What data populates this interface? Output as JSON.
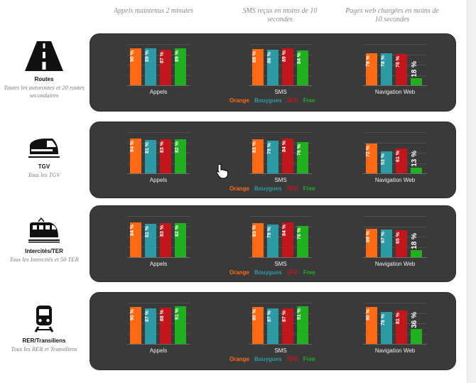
{
  "headers": {
    "calls": "Appels maintenus 2 minutes",
    "sms": "SMS reçus en moins de 10 secondes",
    "web": "Pages web chargées en moins de 10 secondes"
  },
  "operators": [
    {
      "name": "Orange",
      "color": "#ff6a13"
    },
    {
      "name": "Bouygues",
      "color": "#2e9aa6"
    },
    {
      "name": "SFR",
      "color": "#c2161c"
    },
    {
      "name": "Free",
      "color": "#20b022"
    }
  ],
  "groups": {
    "calls": "Appels",
    "sms": "SMS",
    "web": "Navigation Web"
  },
  "rows": [
    {
      "name": "Routes",
      "sub": "Toutes les autoroutes et 20 routes secondaires",
      "icon": "road-icon"
    },
    {
      "name": "TGV",
      "sub": "Tous les TGV",
      "icon": "tgv-train-icon"
    },
    {
      "name": "Intercités/TER",
      "sub": "Tous les Intercités et 50 TER",
      "icon": "regional-train-icon"
    },
    {
      "name": "RER/Transiliens",
      "sub": "Tous les RER et Transiliens",
      "icon": "rer-train-icon"
    }
  ],
  "chart_data": {
    "type": "bar",
    "unit": "%",
    "series": [
      "Orange",
      "Bouygues",
      "SFR",
      "Free"
    ],
    "rows": [
      {
        "name": "Routes",
        "calls": [
          90,
          89,
          87,
          89
        ],
        "sms": [
          88,
          86,
          89,
          84
        ],
        "web": [
          78,
          78,
          76,
          18
        ]
      },
      {
        "name": "TGV",
        "calls": [
          84,
          81,
          83,
          82
        ],
        "sms": [
          83,
          79,
          84,
          76
        ],
        "web": [
          72,
          53,
          61,
          13
        ]
      },
      {
        "name": "Intercités/TER",
        "calls": [
          84,
          81,
          83,
          82
        ],
        "sms": [
          83,
          79,
          84,
          76
        ],
        "web": [
          69,
          67,
          65,
          18
        ]
      },
      {
        "name": "RER/Transiliens",
        "calls": [
          90,
          87,
          88,
          91
        ],
        "sms": [
          90,
          87,
          87,
          91
        ],
        "web": [
          90,
          78,
          81,
          36
        ]
      }
    ],
    "ylim": [
      0,
      100
    ]
  }
}
